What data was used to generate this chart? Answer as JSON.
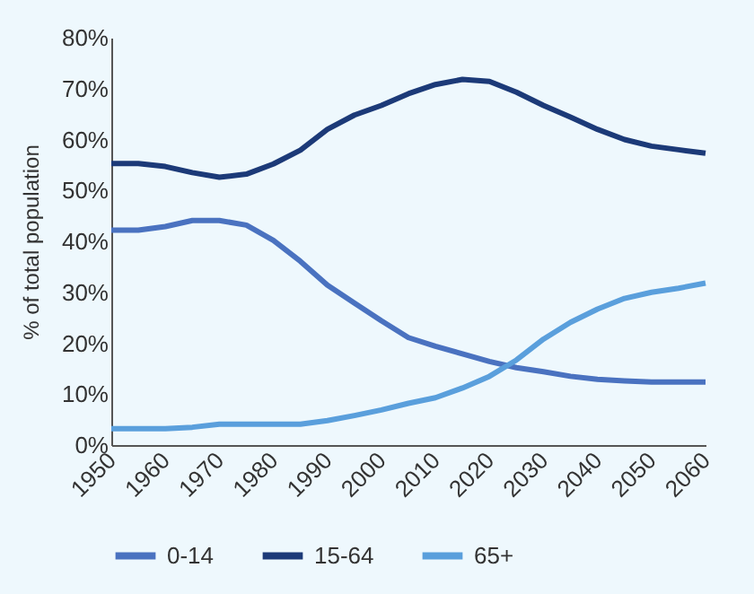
{
  "chart_data": {
    "type": "line",
    "ylabel": "% of total population",
    "x": [
      1950,
      1955,
      1960,
      1965,
      1970,
      1975,
      1980,
      1985,
      1990,
      1995,
      2000,
      2005,
      2010,
      2015,
      2020,
      2025,
      2030,
      2035,
      2040,
      2045,
      2050,
      2055,
      2060
    ],
    "series": [
      {
        "name": "0-14",
        "color": "#4a72c0",
        "values": [
          42.2,
          42.2,
          42.9,
          44.1,
          44.1,
          43.2,
          40.2,
          36.1,
          31.4,
          27.9,
          24.4,
          21.1,
          19.4,
          17.9,
          16.4,
          15.2,
          14.4,
          13.5,
          12.9,
          12.6,
          12.4,
          12.4,
          12.4
        ]
      },
      {
        "name": "15-64",
        "color": "#1c3a78",
        "values": [
          55.3,
          55.3,
          54.7,
          53.5,
          52.6,
          53.2,
          55.2,
          57.9,
          62,
          64.8,
          66.7,
          69,
          70.8,
          71.8,
          71.4,
          69.3,
          66.7,
          64.4,
          62,
          60,
          58.7,
          58,
          57.3
        ]
      },
      {
        "name": "65+",
        "color": "#5a9fdc",
        "values": [
          3.2,
          3.2,
          3.2,
          3.5,
          4.1,
          4.1,
          4.1,
          4.1,
          4.8,
          5.8,
          6.9,
          8.2,
          9.3,
          11.2,
          13.5,
          16.7,
          20.8,
          24.1,
          26.7,
          28.8,
          30,
          30.8,
          31.8
        ]
      }
    ],
    "xlim": [
      1950,
      2060
    ],
    "xticks": [
      1950,
      1960,
      1970,
      1980,
      1990,
      2000,
      2010,
      2020,
      2030,
      2040,
      2050,
      2060
    ],
    "ylim": [
      0,
      80
    ],
    "yticks": [
      {
        "value": 0,
        "label": "0%"
      },
      {
        "value": 10,
        "label": "10%"
      },
      {
        "value": 20,
        "label": "20%"
      },
      {
        "value": 30,
        "label": "30%"
      },
      {
        "value": 40,
        "label": "40%"
      },
      {
        "value": 50,
        "label": "50%"
      },
      {
        "value": 60,
        "label": "60%"
      },
      {
        "value": 70,
        "label": "70%"
      },
      {
        "value": 80,
        "label": "80%"
      }
    ],
    "grid": false,
    "legend": "bottom",
    "marker": "none",
    "line_style": "solid"
  }
}
